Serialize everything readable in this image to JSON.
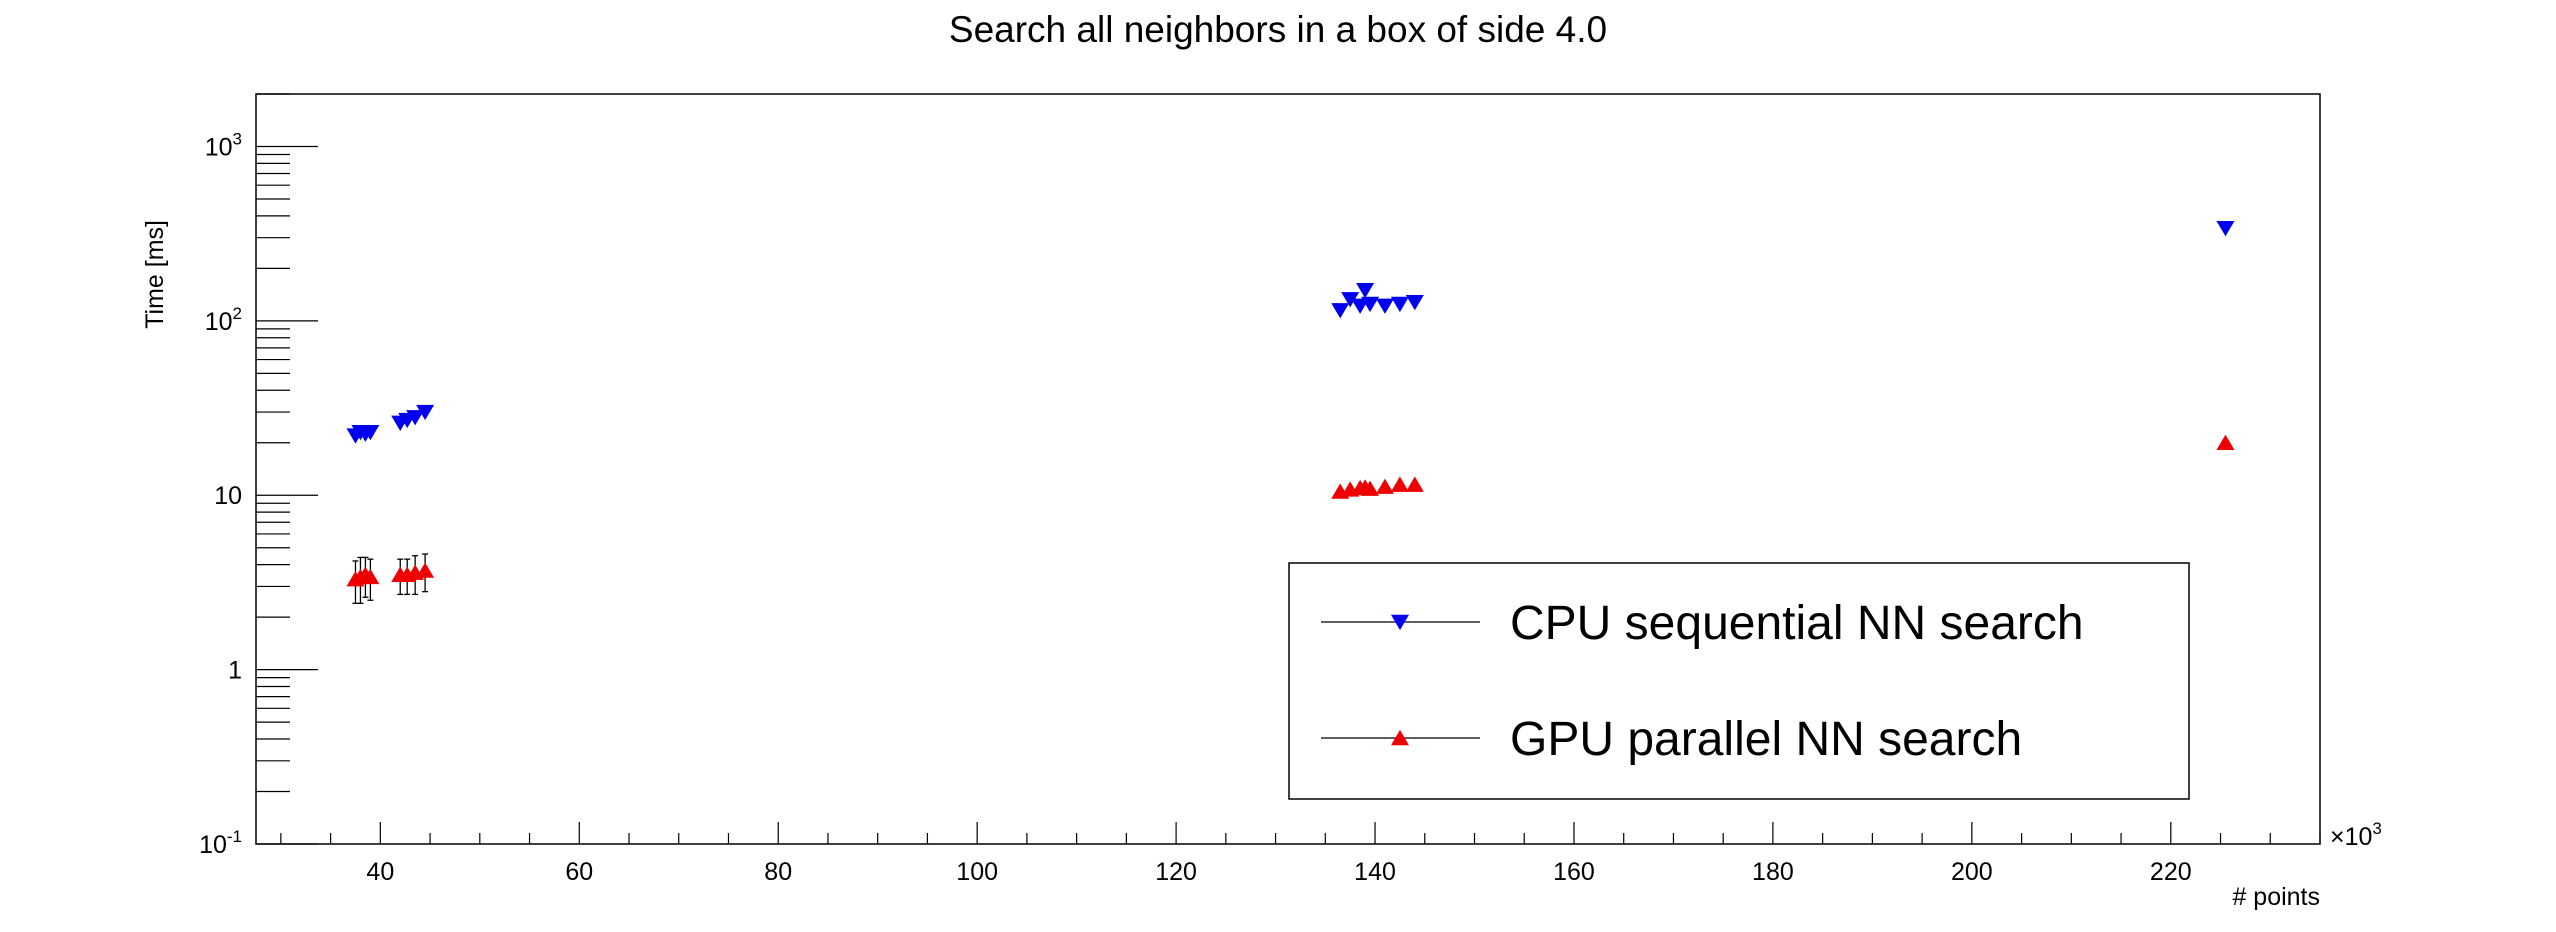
{
  "chart_data": {
    "type": "scatter",
    "title": "Search all neighbors in a box of side 4.0",
    "xlabel": "# points",
    "ylabel": "Time [ms]",
    "x_multiplier": "×10",
    "x_multiplier_exp": "3",
    "xlim": [
      27.5,
      235
    ],
    "ylim": [
      0.1,
      2000
    ],
    "yscale": "log",
    "x_ticks": [
      {
        "value": 40,
        "label": "40"
      },
      {
        "value": 60,
        "label": "60"
      },
      {
        "value": 80,
        "label": "80"
      },
      {
        "value": 100,
        "label": "100"
      },
      {
        "value": 120,
        "label": "120"
      },
      {
        "value": 140,
        "label": "140"
      },
      {
        "value": 160,
        "label": "160"
      },
      {
        "value": 180,
        "label": "180"
      },
      {
        "value": 200,
        "label": "200"
      },
      {
        "value": 220,
        "label": "220"
      }
    ],
    "y_ticks": [
      {
        "value": 0.1,
        "base": "10",
        "exp": "-1"
      },
      {
        "value": 1,
        "base": "1",
        "exp": ""
      },
      {
        "value": 10,
        "base": "10",
        "exp": ""
      },
      {
        "value": 100,
        "base": "10",
        "exp": "2"
      },
      {
        "value": 1000,
        "base": "10",
        "exp": "3"
      }
    ],
    "legend_position": "bottom-right",
    "series": [
      {
        "name": "CPU sequential NN search",
        "color": "#0000ee",
        "marker": "triangle-down",
        "points": [
          {
            "x": 37.5,
            "y": 22
          },
          {
            "x": 38.0,
            "y": 23
          },
          {
            "x": 38.5,
            "y": 22.5
          },
          {
            "x": 39.0,
            "y": 23
          },
          {
            "x": 42.0,
            "y": 26
          },
          {
            "x": 42.7,
            "y": 27
          },
          {
            "x": 43.5,
            "y": 28
          },
          {
            "x": 44.5,
            "y": 30
          },
          {
            "x": 136.5,
            "y": 115
          },
          {
            "x": 137.5,
            "y": 133
          },
          {
            "x": 138.5,
            "y": 122
          },
          {
            "x": 139.0,
            "y": 150
          },
          {
            "x": 139.5,
            "y": 125
          },
          {
            "x": 141.0,
            "y": 122
          },
          {
            "x": 142.5,
            "y": 125
          },
          {
            "x": 144.0,
            "y": 128
          },
          {
            "x": 225.5,
            "y": 340
          }
        ]
      },
      {
        "name": "GPU parallel NN search",
        "color": "#ee0000",
        "marker": "triangle-up",
        "points": [
          {
            "x": 37.5,
            "y": 3.3,
            "err": 0.9
          },
          {
            "x": 38.0,
            "y": 3.4,
            "err": 1.0
          },
          {
            "x": 38.5,
            "y": 3.5,
            "err": 0.9
          },
          {
            "x": 39.0,
            "y": 3.4,
            "err": 0.9
          },
          {
            "x": 42.0,
            "y": 3.5,
            "err": 0.8
          },
          {
            "x": 42.7,
            "y": 3.5,
            "err": 0.8
          },
          {
            "x": 43.5,
            "y": 3.6,
            "err": 0.9
          },
          {
            "x": 44.5,
            "y": 3.7,
            "err": 0.9
          },
          {
            "x": 136.5,
            "y": 10.5
          },
          {
            "x": 137.5,
            "y": 10.8
          },
          {
            "x": 138.5,
            "y": 11.0
          },
          {
            "x": 139.0,
            "y": 11.1
          },
          {
            "x": 139.5,
            "y": 10.9
          },
          {
            "x": 141.0,
            "y": 11.2
          },
          {
            "x": 142.5,
            "y": 11.5
          },
          {
            "x": 144.0,
            "y": 11.5
          },
          {
            "x": 225.5,
            "y": 20
          }
        ]
      }
    ]
  }
}
